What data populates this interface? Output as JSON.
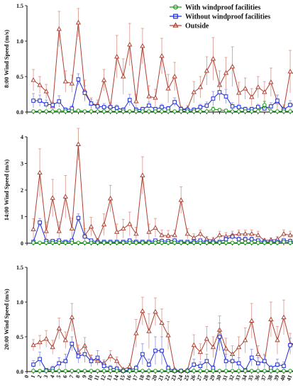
{
  "legend": {
    "with": "With windproof facilities",
    "without": "Without windproof facilities",
    "outside": "Outside"
  },
  "colors": {
    "with": "#1a9a1a",
    "without": "#1f2bd6",
    "outside": "#b04030",
    "err_outside": "#d89488",
    "err_without": "#8890e0"
  },
  "chart_data": [
    {
      "type": "line",
      "ylabel": "8:00 Wind Speed (m/s)",
      "ylim": [
        0,
        1.5
      ],
      "yticks": [
        "0.0",
        "0.5",
        "1.0",
        "1.5"
      ],
      "x": [
        1,
        2,
        3,
        4,
        5,
        6,
        7,
        8,
        9,
        10,
        11,
        12,
        13,
        14,
        15,
        16,
        17,
        18,
        19,
        20,
        21,
        22,
        23,
        24,
        25,
        26,
        27,
        28,
        29,
        30,
        31,
        32,
        33,
        34,
        35,
        36,
        37,
        38,
        39,
        40,
        41,
        42
      ],
      "series": [
        {
          "name": "Outside",
          "values": [
            0.45,
            0.38,
            0.29,
            0.08,
            1.17,
            0.43,
            0.4,
            1.26,
            0.3,
            0.12,
            0.1,
            0.45,
            0.08,
            0.78,
            0.5,
            0.95,
            0.15,
            0.93,
            0.22,
            0.2,
            0.79,
            0.33,
            0.5,
            0.04,
            0.05,
            0.28,
            0.35,
            0.58,
            0.75,
            0.38,
            0.55,
            0.64,
            0.27,
            0.33,
            0.21,
            0.35,
            0.28,
            0.42,
            0.14,
            0.05,
            0.57,
            0.51
          ],
          "err": [
            0.15,
            0.12,
            0.1,
            0.05,
            0.25,
            0.15,
            0.12,
            0.2,
            0.15,
            0.08,
            0.07,
            0.15,
            0.05,
            0.3,
            0.25,
            0.3,
            0.1,
            0.25,
            0.15,
            0.12,
            0.25,
            0.2,
            0.2,
            0.04,
            0.04,
            0.15,
            0.15,
            0.2,
            0.3,
            0.2,
            0.22,
            0.28,
            0.15,
            0.15,
            0.12,
            0.15,
            0.15,
            0.2,
            0.1,
            0.05,
            0.3,
            0.3
          ]
        },
        {
          "name": "Without windproof facilities",
          "values": [
            0.16,
            0.16,
            0.11,
            0.1,
            0.15,
            0.03,
            0.05,
            0.46,
            0.27,
            0.12,
            0.08,
            0.07,
            0.07,
            0.06,
            0.03,
            0.17,
            0.03,
            0.04,
            0.09,
            0.04,
            0.07,
            0.05,
            0.14,
            0.04,
            0.03,
            0.03,
            0.07,
            0.09,
            0.19,
            0.28,
            0.22,
            0.08,
            0.07,
            0.04,
            0.04,
            0.07,
            0.05,
            0.08,
            0.16,
            0.03,
            0.1,
            0.1
          ],
          "err": [
            0.1,
            0.08,
            0.06,
            0.05,
            0.08,
            0.03,
            0.04,
            0.08,
            0.1,
            0.06,
            0.05,
            0.05,
            0.05,
            0.04,
            0.03,
            0.08,
            0.03,
            0.03,
            0.05,
            0.03,
            0.04,
            0.03,
            0.06,
            0.03,
            0.03,
            0.03,
            0.04,
            0.05,
            0.1,
            0.12,
            0.1,
            0.05,
            0.04,
            0.03,
            0.03,
            0.04,
            0.03,
            0.05,
            0.08,
            0.03,
            0.06,
            0.06
          ]
        },
        {
          "name": "With windproof facilities",
          "values": [
            0.01,
            0.01,
            0.01,
            0.01,
            0.02,
            0.01,
            0.01,
            0.02,
            0.01,
            0.01,
            0.01,
            0.01,
            0.01,
            0.01,
            0.01,
            0.01,
            0.01,
            0.01,
            0.01,
            0.01,
            0.01,
            0.01,
            0.01,
            0.01,
            0.01,
            0.01,
            0.01,
            0.01,
            0.04,
            0.03,
            0.02,
            0.01,
            0.01,
            0.01,
            0.01,
            0.01,
            0.1,
            0.01,
            0.01,
            0.01,
            0.01,
            0.01
          ],
          "err": [
            0,
            0,
            0,
            0,
            0,
            0,
            0,
            0,
            0,
            0,
            0,
            0,
            0,
            0,
            0,
            0,
            0,
            0,
            0,
            0,
            0,
            0,
            0,
            0,
            0,
            0,
            0,
            0,
            0.03,
            0.02,
            0.02,
            0,
            0,
            0,
            0,
            0,
            0.05,
            0,
            0,
            0,
            0,
            0
          ]
        }
      ]
    },
    {
      "type": "line",
      "ylabel": "14:00 Wind Speed (m/s)",
      "ylim": [
        0,
        4
      ],
      "yticks": [
        "0",
        "1",
        "2",
        "3",
        "4"
      ],
      "x": [
        1,
        2,
        3,
        4,
        5,
        6,
        7,
        8,
        9,
        10,
        11,
        12,
        13,
        14,
        15,
        16,
        17,
        18,
        19,
        20,
        21,
        22,
        23,
        24,
        25,
        26,
        27,
        28,
        29,
        30,
        31,
        32,
        33,
        34,
        35,
        36,
        37,
        38,
        39,
        40,
        41,
        42
      ],
      "series": [
        {
          "name": "Outside",
          "values": [
            0.52,
            2.65,
            0.45,
            1.7,
            0.45,
            1.75,
            0.55,
            3.72,
            0.3,
            0.62,
            0.1,
            0.7,
            1.68,
            0.42,
            0.55,
            0.72,
            0.35,
            2.55,
            0.42,
            0.58,
            0.3,
            0.28,
            0.3,
            1.62,
            0.35,
            0.2,
            0.35,
            0.15,
            0.12,
            0.3,
            0.25,
            0.3,
            0.35,
            0.35,
            0.35,
            0.3,
            0.1,
            0.12,
            0.15,
            0.35,
            0.3,
            0.3
          ],
          "err": [
            0.4,
            0.9,
            0.35,
            0.7,
            0.35,
            0.8,
            0.4,
            0.6,
            0.25,
            0.35,
            0.08,
            0.4,
            0.5,
            0.3,
            0.35,
            0.45,
            0.25,
            0.7,
            0.3,
            0.35,
            0.2,
            0.2,
            0.2,
            0.5,
            0.2,
            0.15,
            0.15,
            0.1,
            0.1,
            0.15,
            0.15,
            0.15,
            0.15,
            0.15,
            0.15,
            0.15,
            0.08,
            0.08,
            0.1,
            0.15,
            0.15,
            0.12
          ]
        },
        {
          "name": "Without windproof facilities",
          "values": [
            0.05,
            0.78,
            0.08,
            0.08,
            0.1,
            0.05,
            0.1,
            0.95,
            0.25,
            0.1,
            0.05,
            0.05,
            0.05,
            0.05,
            0.05,
            0.1,
            0.05,
            0.05,
            0.05,
            0.1,
            0.08,
            0.08,
            0.1,
            0.05,
            0.05,
            0.05,
            0.1,
            0.05,
            0.05,
            0.05,
            0.15,
            0.25,
            0.15,
            0.15,
            0.15,
            0.1,
            0.05,
            0.05,
            0.05,
            0.1,
            0.08,
            0.05
          ],
          "err": [
            0.04,
            0.15,
            0.05,
            0.05,
            0.06,
            0.04,
            0.06,
            0.15,
            0.12,
            0.06,
            0.04,
            0.04,
            0.04,
            0.04,
            0.04,
            0.06,
            0.04,
            0.04,
            0.04,
            0.06,
            0.05,
            0.05,
            0.06,
            0.04,
            0.04,
            0.04,
            0.06,
            0.04,
            0.04,
            0.04,
            0.08,
            0.12,
            0.08,
            0.08,
            0.08,
            0.06,
            0.04,
            0.04,
            0.04,
            0.06,
            0.05,
            0.04
          ]
        },
        {
          "name": "With windproof facilities",
          "values": [
            0.02,
            0.02,
            0.02,
            0.02,
            0.02,
            0.02,
            0.02,
            0.02,
            0.02,
            0.02,
            0.02,
            0.02,
            0.02,
            0.02,
            0.02,
            0.02,
            0.02,
            0.02,
            0.02,
            0.02,
            0.02,
            0.02,
            0.02,
            0.02,
            0.02,
            0.02,
            0.02,
            0.02,
            0.02,
            0.02,
            0.02,
            0.02,
            0.02,
            0.02,
            0.02,
            0.02,
            0.02,
            0.02,
            0.02,
            0.05,
            0.02,
            0.02
          ],
          "err": [
            0,
            0,
            0,
            0,
            0,
            0,
            0,
            0,
            0,
            0,
            0,
            0,
            0,
            0,
            0,
            0,
            0,
            0,
            0,
            0,
            0,
            0,
            0,
            0,
            0,
            0,
            0,
            0,
            0,
            0,
            0,
            0,
            0,
            0,
            0,
            0,
            0,
            0,
            0,
            0.03,
            0,
            0
          ]
        }
      ]
    },
    {
      "type": "line",
      "ylabel": "20:00 Wind Speed (m/s)",
      "ylim": [
        0,
        1.5
      ],
      "yticks": [
        "0.0",
        "0.5",
        "1.0",
        "1.5"
      ],
      "x": [
        1,
        2,
        3,
        4,
        5,
        6,
        7,
        8,
        9,
        10,
        11,
        12,
        13,
        14,
        15,
        16,
        17,
        18,
        19,
        20,
        21,
        22,
        23,
        24,
        25,
        26,
        27,
        28,
        29,
        30,
        31,
        32,
        33,
        34,
        35,
        36,
        37,
        38,
        39,
        40,
        41,
        42
      ],
      "series": [
        {
          "name": "Outside",
          "values": [
            0.38,
            0.42,
            0.47,
            0.35,
            0.62,
            0.45,
            0.78,
            0.28,
            0.37,
            0.18,
            0.15,
            0.12,
            0.22,
            0.15,
            0.03,
            0.07,
            0.55,
            0.87,
            0.58,
            0.86,
            0.7,
            0.52,
            0.03,
            0.01,
            0.02,
            0.38,
            0.28,
            0.47,
            0.35,
            0.6,
            0.33,
            0.25,
            0.35,
            0.45,
            0.73,
            0.25,
            0.15,
            0.75,
            0.45,
            0.78,
            0.4,
            0.4
          ],
          "err": [
            0.08,
            0.1,
            0.12,
            0.1,
            0.15,
            0.12,
            0.2,
            0.1,
            0.12,
            0.06,
            0.06,
            0.05,
            0.08,
            0.06,
            0.02,
            0.05,
            0.2,
            0.2,
            0.25,
            0.2,
            0.2,
            0.2,
            0.02,
            0.01,
            0.02,
            0.15,
            0.12,
            0.18,
            0.15,
            0.2,
            0.15,
            0.12,
            0.15,
            0.18,
            0.25,
            0.12,
            0.08,
            0.25,
            0.2,
            0.25,
            0.15,
            0.15
          ]
        },
        {
          "name": "Without windproof facilities",
          "values": [
            0.1,
            0.18,
            0.02,
            0.04,
            0.12,
            0.15,
            0.4,
            0.22,
            0.25,
            0.15,
            0.2,
            0.08,
            0.05,
            0.04,
            0.01,
            0.02,
            0.05,
            0.25,
            0.1,
            0.3,
            0.3,
            0.05,
            0.01,
            0.01,
            0.01,
            0.1,
            0.08,
            0.15,
            0.05,
            0.5,
            0.15,
            0.15,
            0.12,
            0.02,
            0.2,
            0.12,
            0.15,
            0.05,
            0.1,
            0.08,
            0.38,
            0.42
          ],
          "err": [
            0.06,
            0.1,
            0.02,
            0.04,
            0.08,
            0.1,
            0.1,
            0.1,
            0.12,
            0.08,
            0.1,
            0.06,
            0.04,
            0.04,
            0.01,
            0.02,
            0.04,
            0.15,
            0.08,
            0.2,
            0.2,
            0.04,
            0.01,
            0.01,
            0.01,
            0.08,
            0.06,
            0.1,
            0.04,
            0.2,
            0.1,
            0.1,
            0.08,
            0.02,
            0.12,
            0.08,
            0.1,
            0.04,
            0.08,
            0.06,
            0.1,
            0.1
          ]
        },
        {
          "name": "With windproof facilities",
          "values": [
            0.01,
            0.01,
            0.01,
            0.01,
            0.01,
            0.01,
            0.01,
            0.01,
            0.01,
            0.01,
            0.01,
            0.01,
            0.01,
            0.01,
            0.01,
            0.01,
            0.01,
            0.01,
            0.01,
            0.01,
            0.01,
            0.01,
            0.01,
            0.01,
            0.01,
            0.01,
            0.01,
            0.01,
            0.01,
            0.01,
            0.01,
            0.01,
            0.01,
            0.01,
            0.01,
            0.01,
            0.01,
            0.01,
            0.01,
            0.01,
            0.01,
            0.01
          ],
          "err": [
            0,
            0,
            0,
            0,
            0,
            0,
            0,
            0,
            0,
            0,
            0,
            0,
            0,
            0,
            0,
            0,
            0,
            0,
            0,
            0,
            0,
            0,
            0,
            0,
            0,
            0,
            0,
            0,
            0,
            0,
            0,
            0,
            0,
            0,
            0,
            0,
            0,
            0,
            0,
            0,
            0,
            0
          ]
        }
      ]
    }
  ]
}
